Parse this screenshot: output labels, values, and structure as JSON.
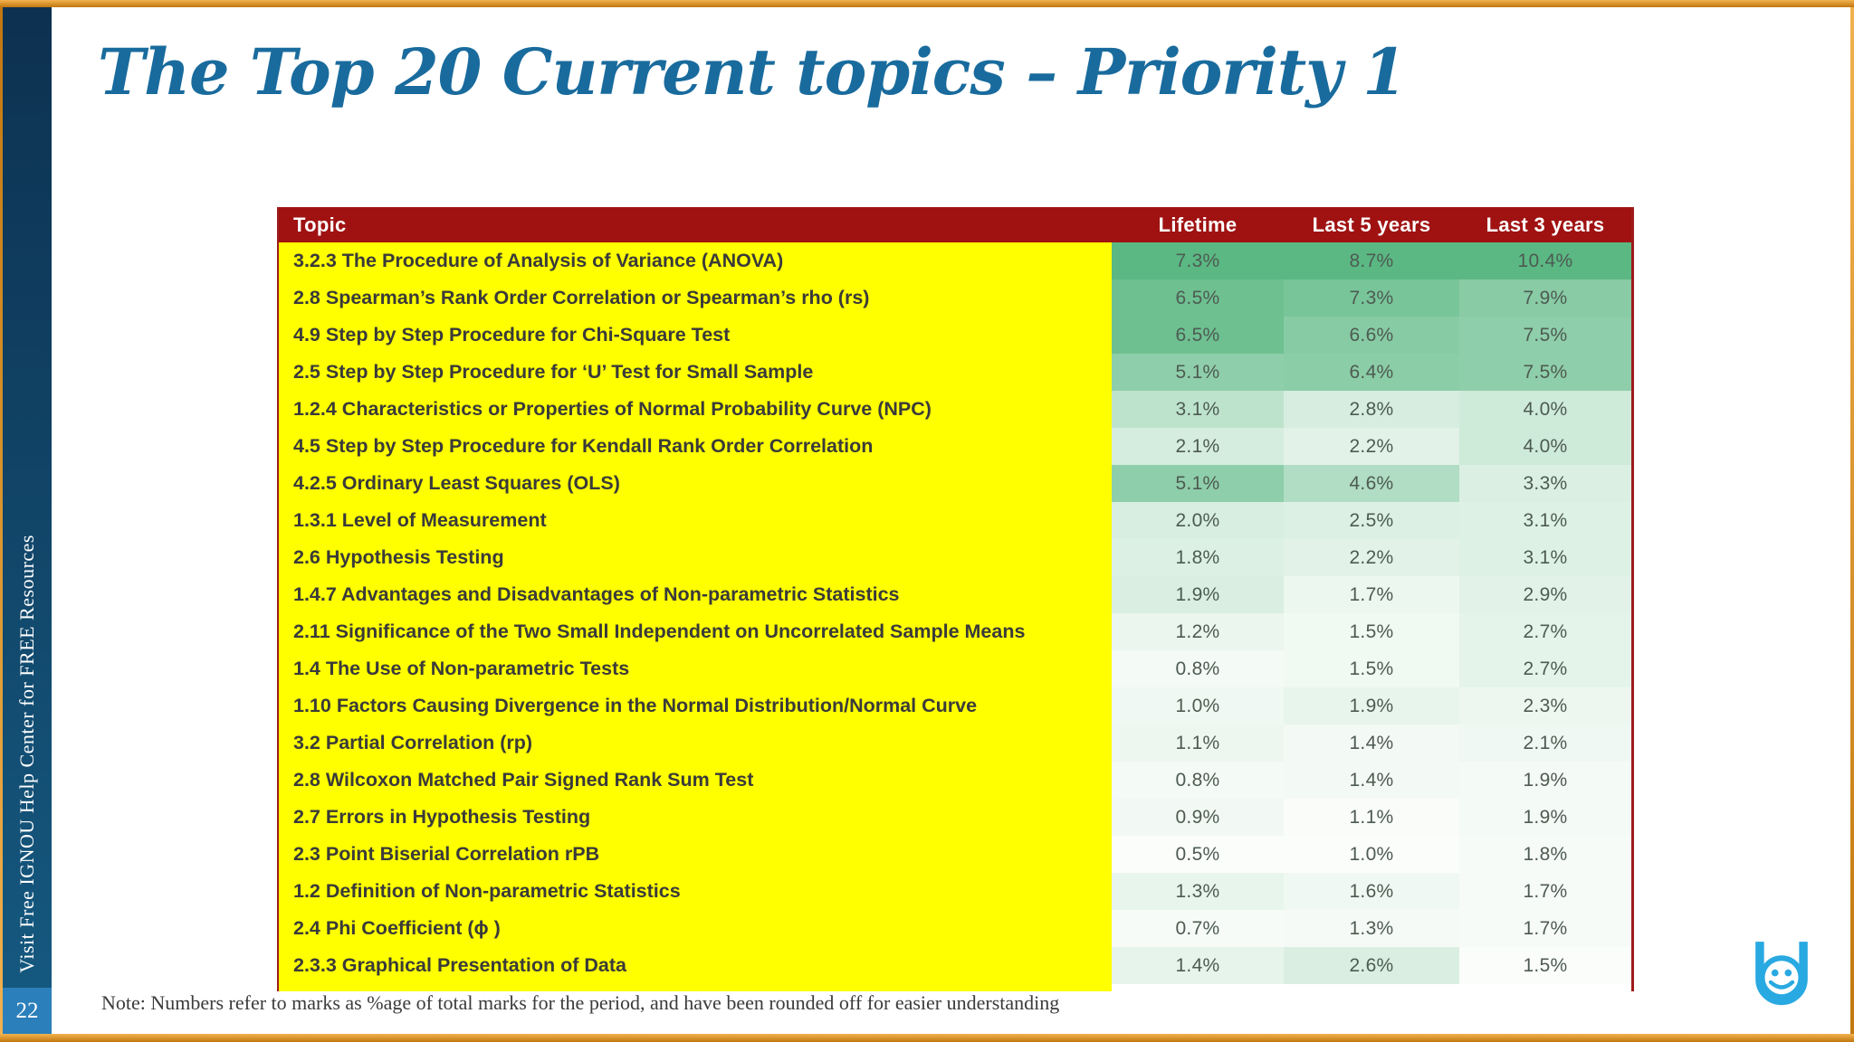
{
  "slide": {
    "title": "The Top 20 Current topics – Priority 1",
    "note": "Note: Numbers refer to marks as %age of total marks for the period, and have been rounded off for easier understanding",
    "page_number": "22",
    "sidebar_text": "Visit Free IGNOU Help Center for FREE Resources",
    "logo_name": "ignou-help-center-smiley-logo"
  },
  "colors": {
    "title": "#196B9D",
    "header_bg": "#A01212",
    "topic_bg": "#FFFF00",
    "topic_text": "#3A3A3A",
    "value_text": "#4D5B52",
    "sidebar_top": "#0D3150",
    "sidebar_bottom": "#15587F",
    "page_box": "#2B7FBA",
    "border_orange_light": "#F2B24F",
    "border_orange_dark": "#C2770F",
    "table_border": "#9E1B1B",
    "logo_blue": "#29A9E1",
    "heat_min": "#FBFDFB",
    "heat_max": "#5BB883"
  },
  "table": {
    "columns": [
      {
        "label": "Topic"
      },
      {
        "label": "Lifetime",
        "min": 0.5,
        "max": 7.3
      },
      {
        "label": "Last 5 years",
        "min": 1.0,
        "max": 8.7
      },
      {
        "label": "Last 3 years",
        "min": 1.5,
        "max": 10.4
      }
    ],
    "rows": [
      {
        "topic": "3.2.3 The Procedure of Analysis of Variance (ANOVA)",
        "values": [
          "7.3%",
          "8.7%",
          "10.4%"
        ]
      },
      {
        "topic": "2.8 Spearman’s Rank Order Correlation or Spearman’s rho (rs)",
        "values": [
          "6.5%",
          "7.3%",
          "7.9%"
        ]
      },
      {
        "topic": "4.9 Step by Step Procedure for Chi-Square Test",
        "values": [
          "6.5%",
          "6.6%",
          "7.5%"
        ]
      },
      {
        "topic": "2.5 Step by Step Procedure for ‘U’ Test for Small Sample",
        "values": [
          "5.1%",
          "6.4%",
          "7.5%"
        ]
      },
      {
        "topic": "1.2.4 Characteristics or Properties of Normal Probability Curve (NPC)",
        "values": [
          "3.1%",
          "2.8%",
          "4.0%"
        ]
      },
      {
        "topic": "4.5 Step by Step Procedure for Kendall Rank Order Correlation",
        "values": [
          "2.1%",
          "2.2%",
          "4.0%"
        ]
      },
      {
        "topic": "4.2.5 Ordinary Least Squares (OLS)",
        "values": [
          "5.1%",
          "4.6%",
          "3.3%"
        ]
      },
      {
        "topic": "1.3.1 Level of Measurement",
        "values": [
          "2.0%",
          "2.5%",
          "3.1%"
        ]
      },
      {
        "topic": "2.6 Hypothesis Testing",
        "values": [
          "1.8%",
          "2.2%",
          "3.1%"
        ]
      },
      {
        "topic": "1.4.7 Advantages and Disadvantages of Non-parametric Statistics",
        "values": [
          "1.9%",
          "1.7%",
          "2.9%"
        ]
      },
      {
        "topic": "2.11 Significance of the Two Small Independent on Uncorrelated Sample Means",
        "values": [
          "1.2%",
          "1.5%",
          "2.7%"
        ]
      },
      {
        "topic": "1.4 The Use of Non-parametric Tests",
        "values": [
          "0.8%",
          "1.5%",
          "2.7%"
        ]
      },
      {
        "topic": "1.10 Factors Causing Divergence in the Normal Distribution/Normal Curve",
        "values": [
          "1.0%",
          "1.9%",
          "2.3%"
        ]
      },
      {
        "topic": "3.2 Partial Correlation (rp)",
        "values": [
          "1.1%",
          "1.4%",
          "2.1%"
        ]
      },
      {
        "topic": "2.8 Wilcoxon Matched Pair Signed Rank Sum Test",
        "values": [
          "0.8%",
          "1.4%",
          "1.9%"
        ]
      },
      {
        "topic": "2.7 Errors in Hypothesis Testing",
        "values": [
          "0.9%",
          "1.1%",
          "1.9%"
        ]
      },
      {
        "topic": "2.3 Point Biserial Correlation rPB",
        "values": [
          "0.5%",
          "1.0%",
          "1.8%"
        ]
      },
      {
        "topic": "1.2 Definition of Non-parametric Statistics",
        "values": [
          "1.3%",
          "1.6%",
          "1.7%"
        ]
      },
      {
        "topic": "2.4 Phi Coefficient (ϕ )",
        "values": [
          "0.7%",
          "1.3%",
          "1.7%"
        ]
      },
      {
        "topic": "2.3.3 Graphical Presentation of Data",
        "values": [
          "1.4%",
          "2.6%",
          "1.5%"
        ]
      }
    ]
  }
}
